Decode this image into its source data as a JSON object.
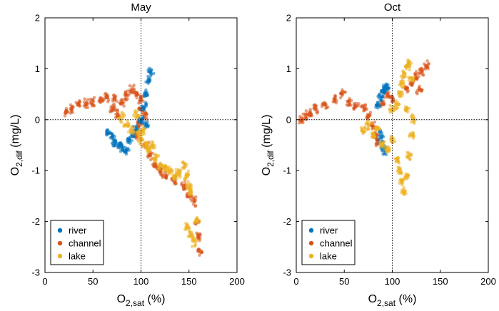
{
  "chart_data": [
    {
      "type": "scatter",
      "title": "May",
      "xlabel": "O2,sat (%)",
      "xlabel_main": "O",
      "xlabel_sub": "2,sat",
      "xlabel_tail": " (%)",
      "ylabel": "O2,dif (mg/L)",
      "ylabel_main": "O",
      "ylabel_sub": "2,dif",
      "ylabel_tail": " (mg/L)",
      "xlim": [
        0,
        200
      ],
      "ylim": [
        -3,
        2
      ],
      "xticks": [
        0,
        50,
        100,
        150,
        200
      ],
      "yticks": [
        -3,
        -2,
        -1,
        0,
        1,
        2
      ],
      "reference_lines": {
        "x": 100,
        "y": 0,
        "style": "dotted"
      },
      "legend_position": "bottom-left",
      "series": [
        {
          "name": "channel",
          "color": "#d95319",
          "points": [
            [
              22,
              0.15
            ],
            [
              28,
              0.2
            ],
            [
              35,
              0.3
            ],
            [
              42,
              0.32
            ],
            [
              50,
              0.35
            ],
            [
              58,
              0.4
            ],
            [
              65,
              0.42
            ],
            [
              72,
              0.4
            ],
            [
              80,
              0.35
            ],
            [
              85,
              0.5
            ],
            [
              90,
              0.6
            ],
            [
              95,
              0.5
            ],
            [
              100,
              0.4
            ],
            [
              100,
              0.2
            ],
            [
              105,
              0.1
            ],
            [
              98,
              -0.1
            ],
            [
              95,
              -0.3
            ],
            [
              105,
              -0.5
            ],
            [
              110,
              -0.7
            ],
            [
              115,
              -0.9
            ],
            [
              120,
              -1.0
            ],
            [
              125,
              -1.1
            ],
            [
              135,
              -1.2
            ],
            [
              145,
              -1.3
            ],
            [
              150,
              -1.5
            ],
            [
              155,
              -1.6
            ],
            [
              158,
              -2.0
            ],
            [
              160,
              -2.3
            ],
            [
              161,
              -2.6
            ],
            [
              70,
              0.2
            ],
            [
              75,
              0.1
            ]
          ]
        },
        {
          "name": "river",
          "color": "#0072bd",
          "points": [
            [
              65,
              -0.25
            ],
            [
              70,
              -0.35
            ],
            [
              72,
              -0.45
            ],
            [
              78,
              -0.5
            ],
            [
              80,
              -0.55
            ],
            [
              85,
              -0.6
            ],
            [
              88,
              -0.4
            ],
            [
              92,
              -0.3
            ],
            [
              95,
              -0.2
            ],
            [
              100,
              0.0
            ],
            [
              103,
              0.25
            ],
            [
              105,
              0.5
            ],
            [
              108,
              0.75
            ],
            [
              110,
              0.95
            ],
            [
              106,
              -0.1
            ]
          ]
        },
        {
          "name": "lake",
          "color": "#edb120",
          "points": [
            [
              80,
              0.05
            ],
            [
              85,
              -0.1
            ],
            [
              90,
              -0.2
            ],
            [
              95,
              0.1
            ],
            [
              98,
              -0.25
            ],
            [
              100,
              -0.4
            ],
            [
              102,
              -0.2
            ],
            [
              105,
              -0.5
            ],
            [
              108,
              -0.6
            ],
            [
              112,
              -0.5
            ],
            [
              115,
              -0.75
            ],
            [
              120,
              -0.9
            ],
            [
              125,
              -0.95
            ],
            [
              130,
              -1.0
            ],
            [
              135,
              -1.1
            ],
            [
              140,
              -1.05
            ],
            [
              145,
              -0.9
            ],
            [
              148,
              -1.1
            ],
            [
              150,
              -1.3
            ],
            [
              152,
              -1.4
            ],
            [
              148,
              -2.1
            ],
            [
              152,
              -2.25
            ],
            [
              155,
              -2.4
            ],
            [
              158,
              -2.0
            ]
          ]
        }
      ]
    },
    {
      "type": "scatter",
      "title": "Oct",
      "xlabel": "O2,sat (%)",
      "xlabel_main": "O",
      "xlabel_sub": "2,sat",
      "xlabel_tail": " (%)",
      "ylabel": "O2,dif (mg/L)",
      "ylabel_main": "O",
      "ylabel_sub": "2,dif",
      "ylabel_tail": " (mg/L)",
      "xlim": [
        0,
        200
      ],
      "ylim": [
        -3,
        2
      ],
      "xticks": [
        0,
        50,
        100,
        150,
        200
      ],
      "yticks": [
        -3,
        -2,
        -1,
        0,
        1,
        2
      ],
      "reference_lines": {
        "x": 100,
        "y": 0,
        "style": "dotted"
      },
      "legend_position": "bottom-left",
      "series": [
        {
          "name": "channel",
          "color": "#d95319",
          "points": [
            [
              5,
              0.0
            ],
            [
              10,
              0.08
            ],
            [
              15,
              0.12
            ],
            [
              20,
              0.2
            ],
            [
              30,
              0.3
            ],
            [
              40,
              0.4
            ],
            [
              48,
              0.5
            ],
            [
              55,
              0.35
            ],
            [
              62,
              0.3
            ],
            [
              70,
              0.25
            ],
            [
              75,
              0.1
            ],
            [
              80,
              -0.1
            ],
            [
              82,
              -0.3
            ],
            [
              85,
              -0.45
            ],
            [
              90,
              0.3
            ],
            [
              95,
              0.5
            ],
            [
              100,
              0.4
            ],
            [
              115,
              0.6
            ],
            [
              120,
              0.7
            ],
            [
              125,
              0.85
            ],
            [
              130,
              0.95
            ],
            [
              135,
              1.05
            ],
            [
              128,
              0.6
            ]
          ]
        },
        {
          "name": "river",
          "color": "#0072bd",
          "points": [
            [
              85,
              0.3
            ],
            [
              88,
              0.45
            ],
            [
              90,
              0.55
            ],
            [
              92,
              0.6
            ],
            [
              95,
              0.62
            ],
            [
              88,
              -0.3
            ],
            [
              90,
              -0.5
            ],
            [
              92,
              -0.6
            ]
          ]
        },
        {
          "name": "lake",
          "color": "#edb120",
          "points": [
            [
              70,
              -0.2
            ],
            [
              75,
              -0.1
            ],
            [
              80,
              -0.3
            ],
            [
              85,
              -0.2
            ],
            [
              90,
              -0.5
            ],
            [
              95,
              -0.6
            ],
            [
              100,
              -0.4
            ],
            [
              100,
              0.2
            ],
            [
              105,
              0.3
            ],
            [
              108,
              0.5
            ],
            [
              110,
              0.7
            ],
            [
              112,
              0.9
            ],
            [
              115,
              1.05
            ],
            [
              118,
              1.1
            ],
            [
              120,
              0.8
            ],
            [
              105,
              -0.8
            ],
            [
              108,
              -1.0
            ],
            [
              110,
              -1.2
            ],
            [
              112,
              -1.4
            ],
            [
              115,
              -1.1
            ],
            [
              118,
              -0.7
            ],
            [
              120,
              -0.3
            ],
            [
              122,
              0.0
            ],
            [
              115,
              0.2
            ]
          ]
        }
      ]
    }
  ]
}
